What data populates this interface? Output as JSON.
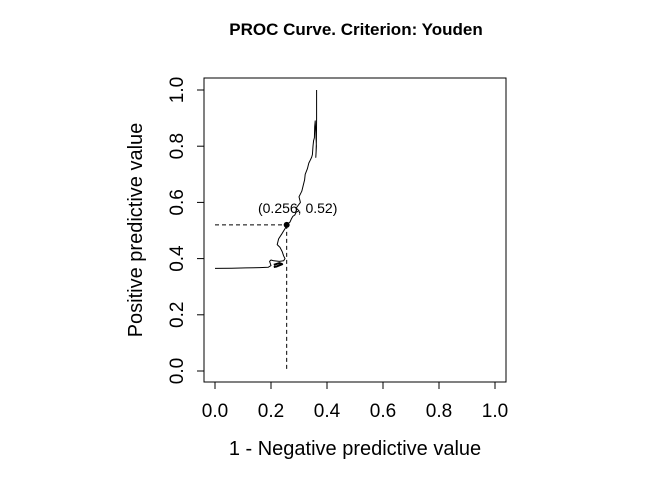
{
  "chart_data": {
    "type": "line",
    "title": "PROC Curve. Criterion: Youden",
    "xlabel": "1 - Negative predictive value",
    "ylabel": "Positive predictive value",
    "xlim": [
      0,
      1
    ],
    "ylim": [
      0,
      1
    ],
    "x_ticks": [
      "0.0",
      "0.2",
      "0.4",
      "0.6",
      "0.8",
      "1.0"
    ],
    "y_ticks": [
      "0.0",
      "0.2",
      "0.4",
      "0.6",
      "0.8",
      "1.0"
    ],
    "grid": false,
    "legend": "none",
    "series": [
      {
        "x": [
          0.0,
          0.06,
          0.11,
          0.16,
          0.19,
          0.2,
          0.195,
          0.2,
          0.21,
          0.23,
          0.245,
          0.25,
          0.245,
          0.24,
          0.232,
          0.222,
          0.227,
          0.24,
          0.252,
          0.256,
          0.26,
          0.268,
          0.272,
          0.278,
          0.285,
          0.29,
          0.3,
          0.29,
          0.305,
          0.3,
          0.31,
          0.315,
          0.32,
          0.322,
          0.33,
          0.335,
          0.34,
          0.345,
          0.348,
          0.35,
          0.352,
          0.355,
          0.356,
          0.358,
          0.36,
          0.362,
          0.36,
          0.361,
          0.362,
          0.363,
          0.363
        ],
        "y": [
          0.365,
          0.366,
          0.367,
          0.368,
          0.369,
          0.375,
          0.39,
          0.395,
          0.392,
          0.39,
          0.392,
          0.4,
          0.41,
          0.425,
          0.44,
          0.45,
          0.47,
          0.49,
          0.51,
          0.52,
          0.525,
          0.53,
          0.54,
          0.55,
          0.555,
          0.565,
          0.57,
          0.58,
          0.6,
          0.62,
          0.64,
          0.66,
          0.68,
          0.7,
          0.72,
          0.74,
          0.75,
          0.76,
          0.77,
          0.8,
          0.82,
          0.83,
          0.87,
          0.89,
          0.85,
          0.8,
          0.76,
          0.78,
          0.82,
          0.9,
          1.0
        ],
        "color": "#000000"
      },
      {
        "x": [
          0.21,
          0.22,
          0.23,
          0.24,
          0.23,
          0.21
        ],
        "y": [
          0.37,
          0.372,
          0.376,
          0.38,
          0.384,
          0.378
        ],
        "color": "#000000"
      }
    ],
    "optimal_point": {
      "x": 0.256,
      "y": 0.52,
      "label": "(0.256, 0.52)"
    }
  }
}
